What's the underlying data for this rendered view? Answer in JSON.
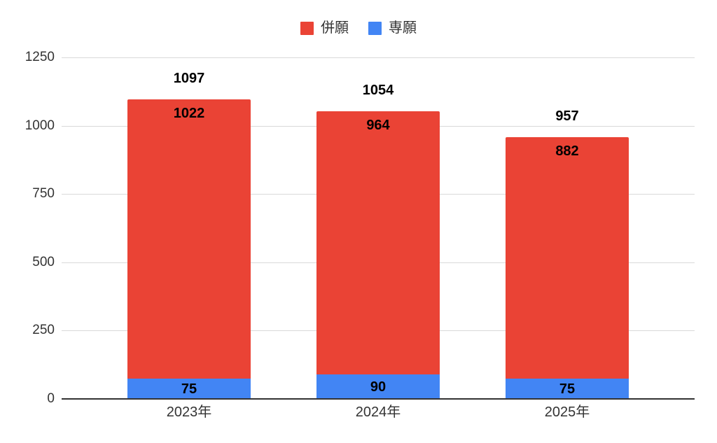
{
  "chart_data": {
    "type": "bar",
    "stacked": true,
    "title": "",
    "categories": [
      "2023年",
      "2024年",
      "2025年"
    ],
    "series": [
      {
        "name": "併願",
        "color": "#ea4335",
        "values": [
          1022,
          964,
          882
        ]
      },
      {
        "name": "専願",
        "color": "#4285f4",
        "values": [
          75,
          90,
          75
        ]
      }
    ],
    "stack_bottom_to_top": [
      "専願",
      "併願"
    ],
    "totals": [
      1097,
      1054,
      957
    ],
    "xlabel": "",
    "ylabel": "",
    "ylim": [
      0,
      1250
    ],
    "yticks": [
      0,
      250,
      500,
      750,
      1000,
      1250
    ],
    "grid": true,
    "legend_position": "top",
    "colors": {
      "background": "#ffffff",
      "gridline": "#d9d9d9",
      "axis_line": "#333333",
      "axis_text": "#333333",
      "data_label_text": "#000000"
    }
  }
}
